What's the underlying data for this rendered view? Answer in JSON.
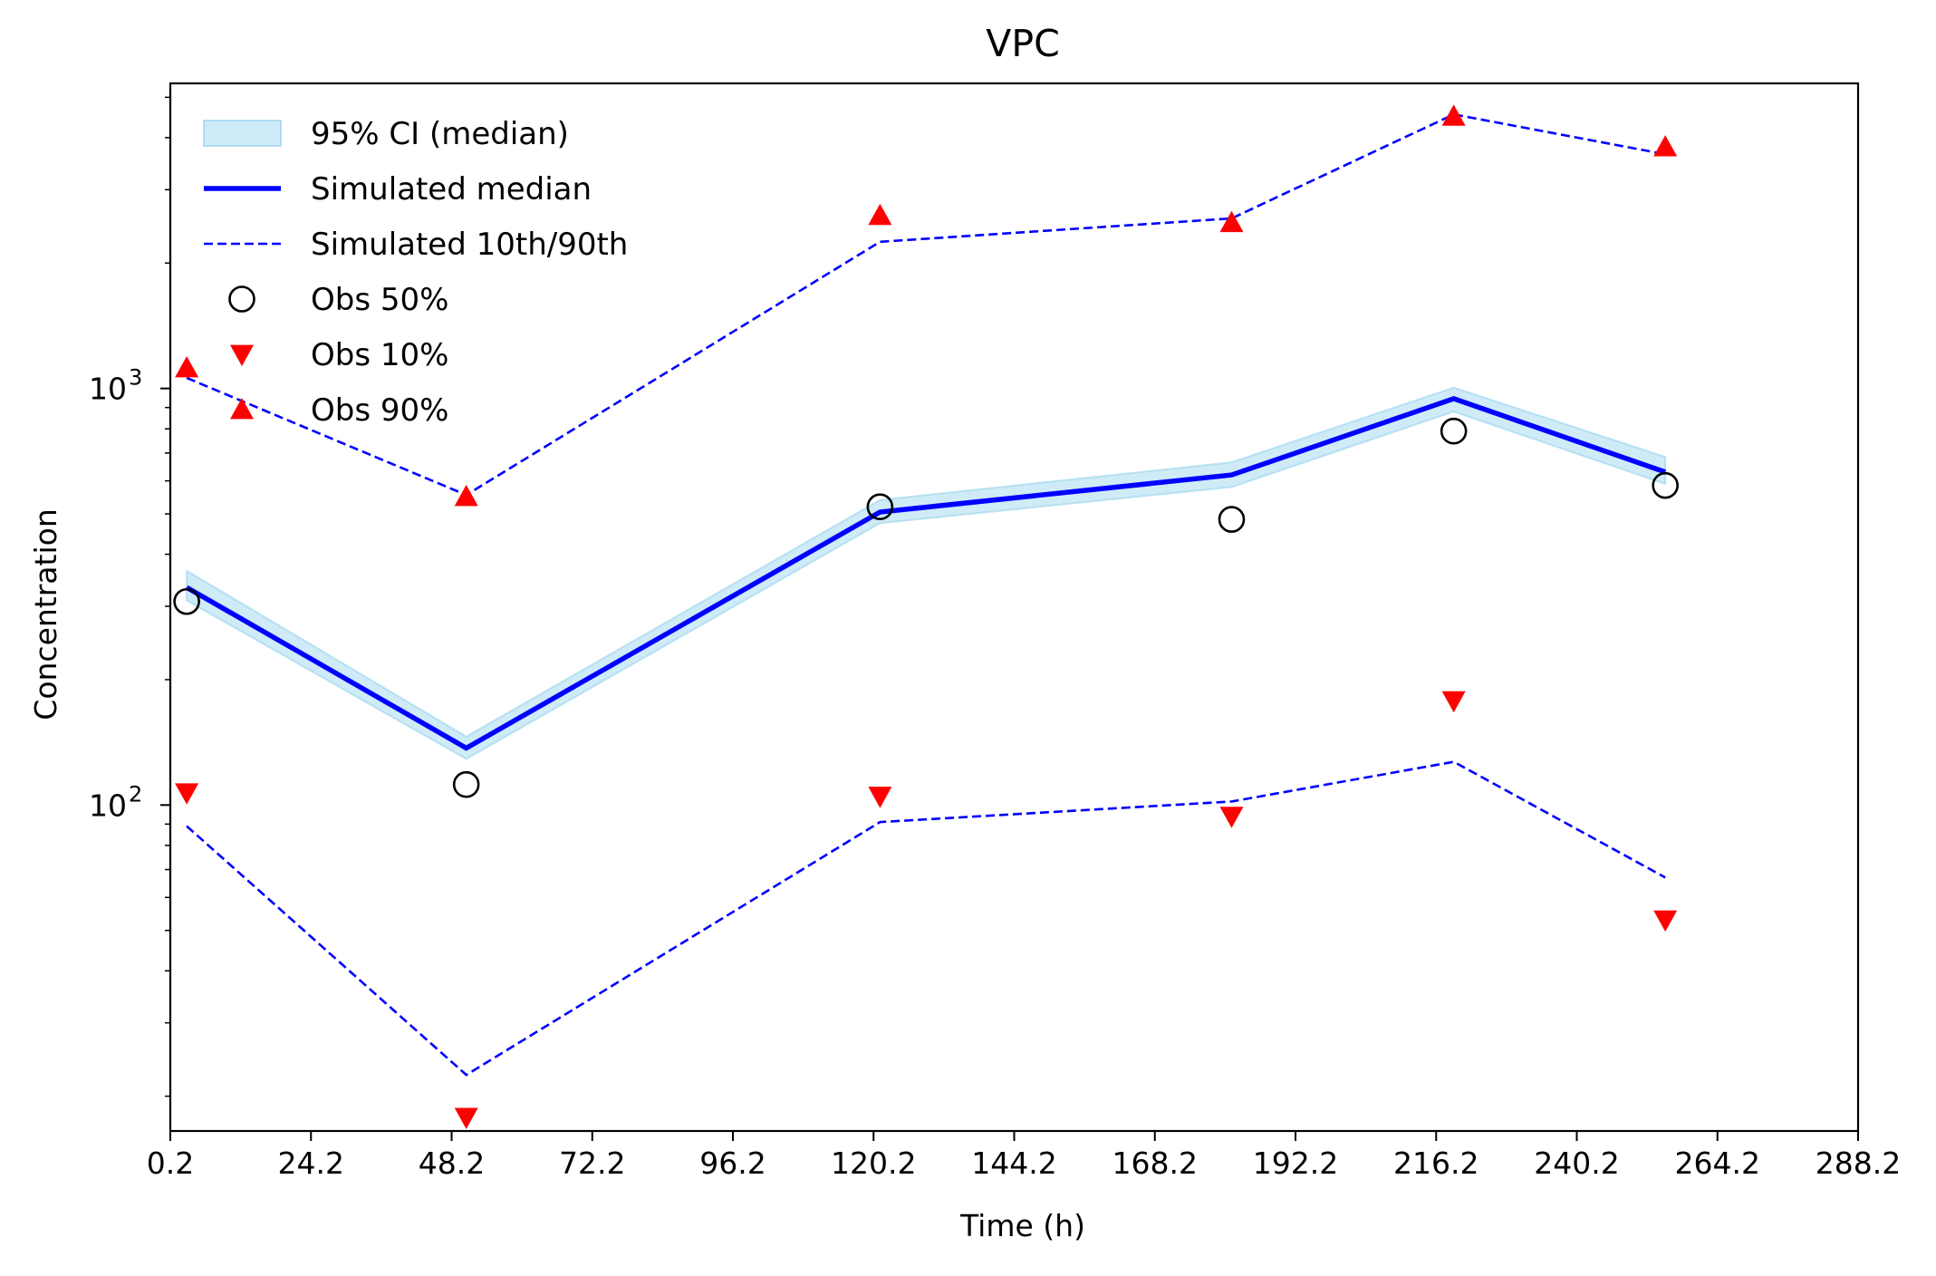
{
  "chart_data": {
    "type": "line",
    "title": "VPC",
    "xlabel": "Time (h)",
    "ylabel": "Concentration",
    "yscale": "log",
    "xlim": [
      0.2,
      288.2
    ],
    "ylim": [
      16.5,
      5400
    ],
    "grid": false,
    "legend_position": "top-left",
    "x_ticks": [
      0.2,
      24.2,
      48.2,
      72.2,
      96.2,
      120.2,
      144.2,
      168.2,
      192.2,
      216.2,
      240.2,
      264.2,
      288.2
    ],
    "x_tick_labels": [
      "0.2",
      "24.2",
      "48.2",
      "72.2",
      "96.2",
      "120.2",
      "144.2",
      "168.2",
      "192.2",
      "216.2",
      "240.2",
      "264.2",
      "288.2"
    ],
    "y_ticks": [
      {
        "value": 100,
        "base": "10",
        "exp": "2"
      },
      {
        "value": 1000,
        "base": "10",
        "exp": "3"
      }
    ],
    "x": [
      3,
      50.7,
      121.3,
      181.3,
      219.2,
      255.3
    ],
    "ci_band": {
      "name": "95% CI (median)",
      "color": "#87ceeb",
      "lower": [
        310,
        129,
        475,
        580,
        880,
        590
      ],
      "upper": [
        365,
        146,
        540,
        665,
        1005,
        685
      ]
    },
    "series": [
      {
        "name": "Simulated median",
        "style": "solid",
        "color": "#0000ff",
        "values": [
          333,
          137,
          505,
          620,
          945,
          630
        ]
      },
      {
        "name": "Simulated 10th/90th",
        "style": "dashed",
        "color": "#0000ff",
        "values": [
          1060,
          555,
          2250,
          2560,
          4550,
          3650
        ]
      },
      {
        "name": "Simulated 10th/90th",
        "style": "dashed",
        "color": "#0000ff",
        "values": [
          89,
          22.5,
          91,
          102,
          127,
          67
        ]
      }
    ],
    "observed": [
      {
        "name": "Obs 50%",
        "marker": "circle",
        "color": "#000000",
        "values": [
          308,
          112,
          520,
          485,
          790,
          585
        ]
      },
      {
        "name": "Obs 10%",
        "marker": "triangle-down",
        "color": "#ff0000",
        "values": [
          107,
          17.8,
          105,
          94,
          178,
          53
        ]
      },
      {
        "name": "Obs 90%",
        "marker": "triangle-up",
        "color": "#ff0000",
        "values": [
          1120,
          550,
          2600,
          2500,
          4500,
          3800
        ]
      }
    ],
    "legend": [
      {
        "label": "95% CI (median)",
        "marker": "band"
      },
      {
        "label": "Simulated median",
        "marker": "solid-line"
      },
      {
        "label": "Simulated 10th/90th",
        "marker": "dashed-line"
      },
      {
        "label": "Obs 50%",
        "marker": "circle"
      },
      {
        "label": "Obs 10%",
        "marker": "triangle-down"
      },
      {
        "label": "Obs 90%",
        "marker": "triangle-up"
      }
    ]
  }
}
